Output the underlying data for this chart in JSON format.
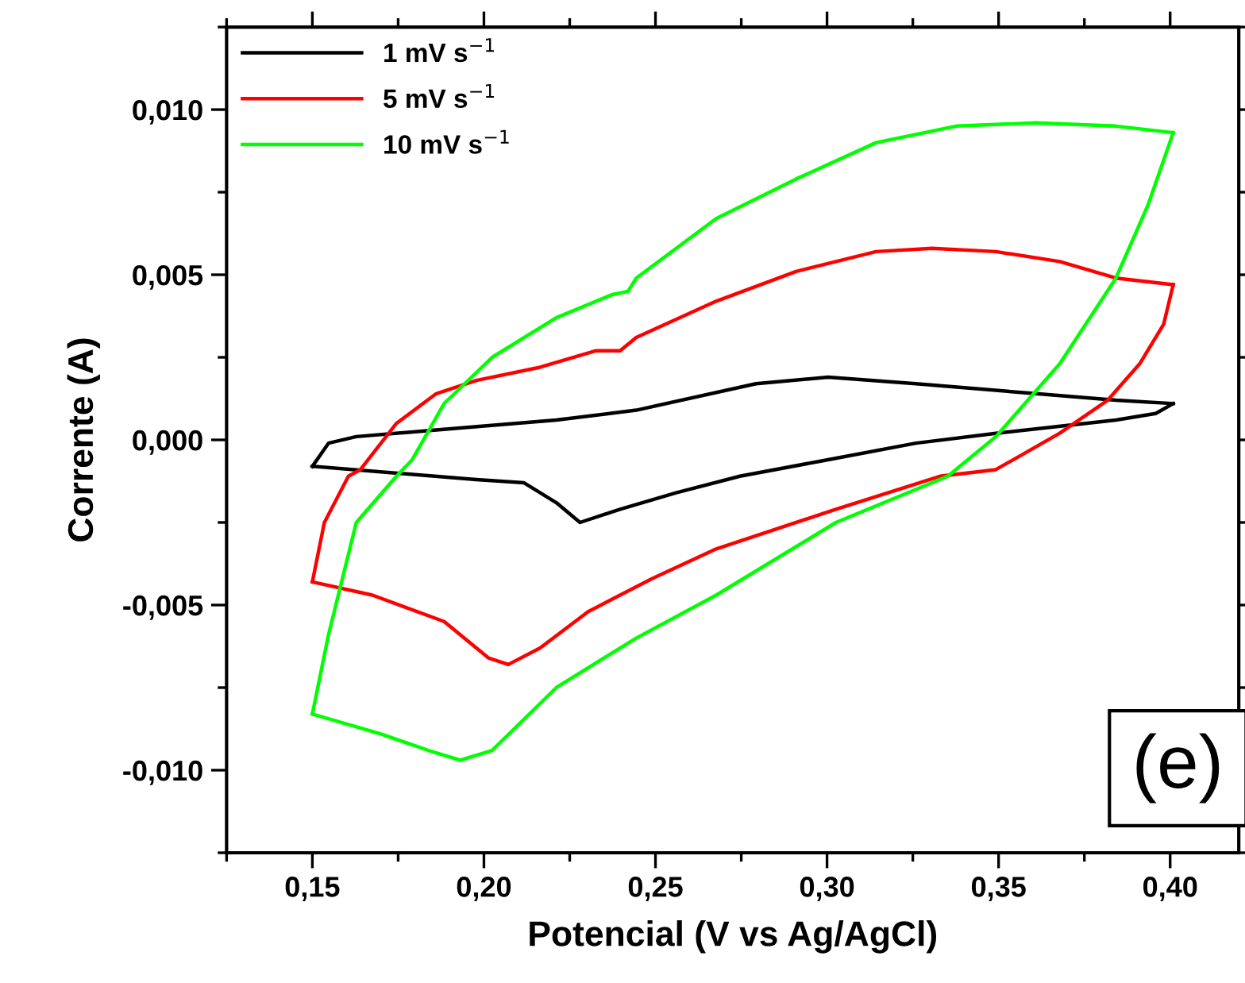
{
  "chart_data": {
    "type": "line",
    "xlabel": "Potencial (V vs Ag/AgCl)",
    "ylabel": "Corrente (A)",
    "xlim": [
      0.125,
      0.42
    ],
    "ylim": [
      -0.0125,
      0.0125
    ],
    "xticks": [
      {
        "value": 0.15,
        "label": "0,15"
      },
      {
        "value": 0.2,
        "label": "0,20"
      },
      {
        "value": 0.25,
        "label": "0,25"
      },
      {
        "value": 0.3,
        "label": "0,30"
      },
      {
        "value": 0.35,
        "label": "0,35"
      },
      {
        "value": 0.4,
        "label": "0,40"
      }
    ],
    "yticks": [
      {
        "value": -0.01,
        "label": "-0,010"
      },
      {
        "value": -0.005,
        "label": "-0,005"
      },
      {
        "value": 0.0,
        "label": "0,000"
      },
      {
        "value": 0.005,
        "label": "0,005"
      },
      {
        "value": 0.01,
        "label": "0,010"
      }
    ],
    "legend": "top left",
    "marker": "none",
    "line_style": "solid",
    "grid": false,
    "annotations": [
      "(e)"
    ],
    "series": [
      {
        "name": "1 mV s$^{−1}$",
        "color": "#000000",
        "x": [
          0.15,
          0.1978,
          0.2117,
          0.2211,
          0.228,
          0.2397,
          0.256,
          0.2746,
          0.3003,
          0.3259,
          0.3492,
          0.3842,
          0.3958,
          0.4009
        ],
        "values": [
          -0.0008,
          -0.0012,
          -0.0013,
          -0.0019,
          -0.0025,
          -0.0021,
          -0.0016,
          -0.0011,
          -0.0006,
          -0.0001,
          0.0002,
          0.0006,
          0.0008,
          0.0011
        ]
      },
      {
        "color": "#000000",
        "x": [
          0.15,
          0.1547,
          0.1628,
          0.1861,
          0.2211,
          0.2444,
          0.2793,
          0.3003,
          0.3259,
          0.3609,
          0.3842,
          0.4009
        ],
        "values": [
          -0.0008,
          -0.0001,
          0.0001,
          0.0003,
          0.0006,
          0.0009,
          0.0017,
          0.0019,
          0.0017,
          0.0014,
          0.0012,
          0.0011
        ]
      },
      {
        "name": "5 mV s$^{−1}$",
        "color": "#ff0000",
        "x": [
          0.15,
          0.1675,
          0.1884,
          0.2013,
          0.2071,
          0.2164,
          0.2304,
          0.249,
          0.2677,
          0.3026,
          0.3329,
          0.3492,
          0.3678,
          0.3818,
          0.3911,
          0.3981,
          0.4009
        ],
        "values": [
          -0.0043,
          -0.0047,
          -0.0055,
          -0.0066,
          -0.0068,
          -0.0063,
          -0.0052,
          -0.0042,
          -0.0033,
          -0.0021,
          -0.0011,
          -0.0009,
          0.0002,
          0.0012,
          0.0023,
          0.0035,
          0.0047
        ]
      },
      {
        "color": "#ff0000",
        "x": [
          0.15,
          0.1535,
          0.1605,
          0.164,
          0.1745,
          0.1861,
          0.1978,
          0.2164,
          0.2327,
          0.2397,
          0.2444,
          0.2677,
          0.291,
          0.3143,
          0.3306,
          0.3492,
          0.3678,
          0.3842,
          0.4009
        ],
        "values": [
          -0.0043,
          -0.0025,
          -0.0011,
          -0.0009,
          0.0005,
          0.0014,
          0.0018,
          0.0022,
          0.0027,
          0.0027,
          0.0031,
          0.0042,
          0.0051,
          0.0057,
          0.0058,
          0.0057,
          0.0054,
          0.0049,
          0.0047
        ]
      },
      {
        "name": "10 mV s$^{−1}$",
        "color": "#00ff00",
        "x": [
          0.15,
          0.1698,
          0.1838,
          0.1931,
          0.2024,
          0.2211,
          0.2444,
          0.2677,
          0.3026,
          0.3352,
          0.3492,
          0.3678,
          0.3842,
          0.3935,
          0.4009
        ],
        "values": [
          -0.0083,
          -0.0089,
          -0.0094,
          -0.0097,
          -0.0094,
          -0.0075,
          -0.006,
          -0.0047,
          -0.0025,
          -0.0011,
          0.0001,
          0.0023,
          0.0049,
          0.0071,
          0.0093
        ]
      },
      {
        "color": "#00ff00",
        "x": [
          0.15,
          0.1547,
          0.1628,
          0.1745,
          0.1791,
          0.1884,
          0.2024,
          0.2211,
          0.2374,
          0.242,
          0.2444,
          0.2677,
          0.291,
          0.3143,
          0.3376,
          0.3609,
          0.3842,
          0.4009
        ],
        "values": [
          -0.0083,
          -0.0059,
          -0.0025,
          -0.0011,
          -0.0006,
          0.0011,
          0.0025,
          0.0037,
          0.0044,
          0.0045,
          0.0049,
          0.0067,
          0.0079,
          0.009,
          0.0095,
          0.0096,
          0.0095,
          0.0093
        ]
      }
    ]
  }
}
